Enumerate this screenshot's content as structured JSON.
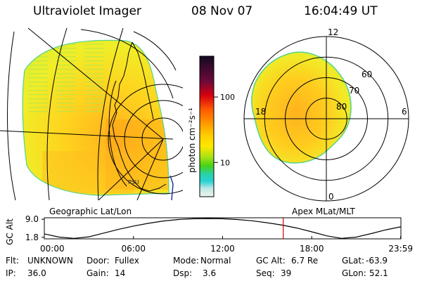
{
  "header": {
    "instrument": "Ultraviolet Imager",
    "date": "08 Nov 07",
    "time": "16:04:49 UT"
  },
  "colors": {
    "background": "#ffffff",
    "lines": "#000000",
    "marker": "#cc0000",
    "cb_top": "#120a22",
    "cb_red": "#d80010",
    "cb_orange": "#ff9a00",
    "cb_yellow": "#ffe800",
    "cb_green": "#46d214",
    "cb_cyan": "#28d2d2",
    "cb_bottom": "#eef6ea"
  },
  "left_panel": {
    "caption": "Geographic Lat/Lon",
    "watermark": "PSU"
  },
  "colorbar": {
    "unit_label": "photon cm⁻²s⁻¹",
    "ticks": [
      {
        "value": 100,
        "label": "100"
      },
      {
        "value": 10,
        "label": "10"
      }
    ],
    "range": [
      3,
      420
    ]
  },
  "polar_plot": {
    "caption": "Apex MLat/MLT",
    "mlt_labels": [
      {
        "mlt": 12,
        "label": "12"
      },
      {
        "mlt": 18,
        "label": "18"
      },
      {
        "mlt": 6,
        "label": "6"
      },
      {
        "mlt": 0,
        "label": "0"
      }
    ],
    "lat_labels": [
      {
        "lat": 60,
        "label": "60"
      },
      {
        "lat": 70,
        "label": "70"
      },
      {
        "lat": 80,
        "label": "80"
      }
    ],
    "circles_lat": [
      50,
      60,
      70,
      80
    ]
  },
  "chart_data": {
    "type": "line",
    "title": "GC Alt",
    "ylabel": "GC Alt",
    "y_ticks": [
      {
        "value": 9.0,
        "label": "9.0"
      },
      {
        "value": 1.8,
        "label": "1.8"
      }
    ],
    "ylim": [
      1.2,
      9.6
    ],
    "xlim": [
      0,
      24
    ],
    "x_ticks": [
      {
        "value": 0,
        "label": "00:00"
      },
      {
        "value": 6,
        "label": "06:00"
      },
      {
        "value": 12,
        "label": "12:00"
      },
      {
        "value": 18,
        "label": "18:00"
      },
      {
        "value": 23.98,
        "label": "23:59"
      }
    ],
    "x": [
      0,
      1,
      2,
      3,
      4,
      5,
      6,
      7,
      8,
      9,
      10,
      11,
      12,
      13,
      14,
      15,
      16,
      17,
      18,
      19,
      20,
      21,
      22,
      23,
      23.98
    ],
    "series": [
      {
        "name": "GC Alt (Re)",
        "values": [
          3.2,
          1.9,
          1.4,
          2.0,
          3.5,
          5.0,
          6.3,
          7.4,
          8.3,
          8.9,
          9.2,
          9.3,
          9.2,
          8.9,
          8.4,
          7.6,
          6.7,
          5.5,
          4.0,
          2.4,
          1.4,
          1.9,
          3.3,
          4.8,
          6.0
        ]
      }
    ],
    "current_time": 16.08
  },
  "status": {
    "rows": [
      [
        {
          "label": "Flt:",
          "value": "UNKNOWN"
        },
        {
          "label": "Door:",
          "value": "Fullex"
        },
        {
          "label": "Mode:",
          "value": "Normal"
        },
        {
          "label": "GC Alt:",
          "value": "6.7 Re"
        },
        {
          "label": "GLat:",
          "value": "-63.9"
        }
      ],
      [
        {
          "label": "IP:",
          "value": "36.0"
        },
        {
          "label": "Gain:",
          "value": "14"
        },
        {
          "label": "Dsp:",
          "value": "3.6"
        },
        {
          "label": "Seq:",
          "value": "39"
        },
        {
          "label": "GLon:",
          "value": "52.1"
        }
      ]
    ]
  }
}
